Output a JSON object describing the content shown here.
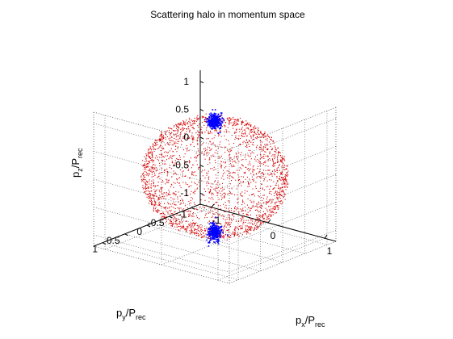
{
  "chart_data": {
    "type": "scatter",
    "title": "Scattering halo in momentum space",
    "xlabel": {
      "main": "p",
      "sub": "x",
      "slash": "/P",
      "sub2": "rec"
    },
    "ylabel": {
      "main": "p",
      "sub": "y",
      "slash": "/P",
      "sub2": "rec"
    },
    "zlabel": {
      "main": "p",
      "sub": "z",
      "slash": "/P",
      "sub2": "rec"
    },
    "xlim": [
      -1.2,
      1.2
    ],
    "ylim": [
      -1.2,
      1.2
    ],
    "zlim": [
      -1.2,
      1.2
    ],
    "x_ticks": [
      "-1",
      "0",
      "1"
    ],
    "y_ticks": [
      "-1",
      "-0.5",
      "0",
      "0.5",
      "1"
    ],
    "z_ticks": [
      "-1",
      "-0.5",
      "0",
      "0.5",
      "1"
    ],
    "grid": true,
    "projection": "3d",
    "series": [
      {
        "color": "#d40000",
        "marker": "dot",
        "shape": "spherical shell",
        "radius": 1.0,
        "count": 2600
      },
      {
        "color": "#0000ff",
        "marker": "dot",
        "shape": "condensate cluster",
        "center": [
          0,
          0,
          1.0
        ],
        "count": 300
      },
      {
        "color": "#0000ff",
        "marker": "dot",
        "shape": "condensate cluster",
        "center": [
          0,
          0,
          -1.0
        ],
        "count": 300
      }
    ]
  }
}
